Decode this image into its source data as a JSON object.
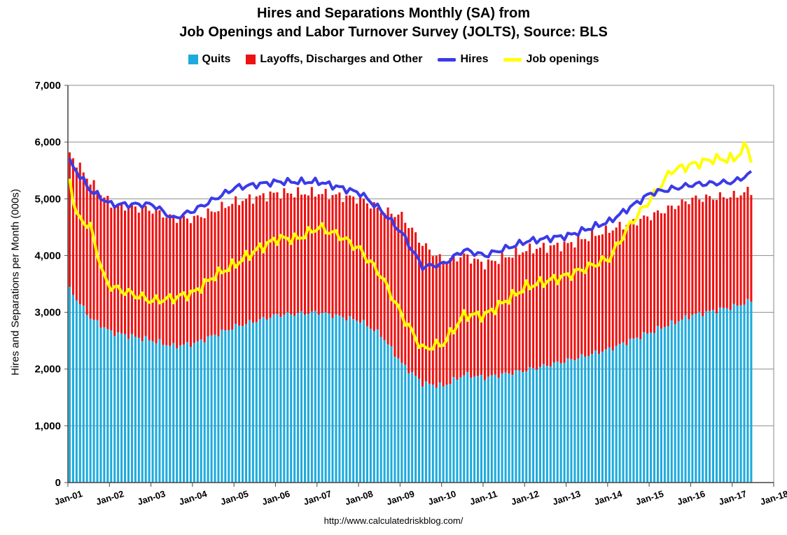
{
  "title_line1": "Hires and Separations Monthly (SA) from",
  "title_line2": "Job Openings and Labor Turnover Survey (JOLTS), Source: BLS",
  "legend": {
    "quits": "Quits",
    "layoffs": "Layoffs, Discharges and Other",
    "hires": "Hires",
    "openings": "Job openings"
  },
  "colors": {
    "quits": "#1EAADC",
    "layoffs": "#EE1111",
    "hires": "#3B3BE8",
    "openings": "#FFFF00"
  },
  "source": "http://www.calculatedriskblog.com/",
  "chart_data": {
    "type": "bar",
    "title": "Hires and Separations Monthly (SA) from Job Openings and Labor Turnover Survey (JOLTS), Source: BLS",
    "ylabel": "Hires and Separations per Month (000s)",
    "xlabel": "",
    "ylim": [
      0,
      7000
    ],
    "yticks": [
      0,
      1000,
      2000,
      3000,
      4000,
      5000,
      6000,
      7000
    ],
    "ytick_labels": [
      "0",
      "1,000",
      "2,000",
      "3,000",
      "4,000",
      "5,000",
      "6,000",
      "7,000"
    ],
    "xtick_labels": [
      "Jan-01",
      "Jan-02",
      "Jan-03",
      "Jan-04",
      "Jan-05",
      "Jan-06",
      "Jan-07",
      "Jan-08",
      "Jan-09",
      "Jan-10",
      "Jan-11",
      "Jan-12",
      "Jan-13",
      "Jan-14",
      "Jan-15",
      "Jan-16",
      "Jan-17",
      "Jan-18"
    ],
    "stacked": true,
    "grid": true,
    "legend_position": "top",
    "frequency": "monthly",
    "start": "Jan-01",
    "end": "Jun-17",
    "anchors": {
      "quits": [
        [
          "Jan-01",
          3400
        ],
        [
          "Jul-01",
          2900
        ],
        [
          "Jan-02",
          2650
        ],
        [
          "Jan-03",
          2500
        ],
        [
          "Jul-03",
          2400
        ],
        [
          "Jan-04",
          2450
        ],
        [
          "Jan-05",
          2750
        ],
        [
          "Jan-06",
          2950
        ],
        [
          "Jan-07",
          3000
        ],
        [
          "Jan-08",
          2850
        ],
        [
          "Jul-08",
          2600
        ],
        [
          "Jan-09",
          2100
        ],
        [
          "Jul-09",
          1750
        ],
        [
          "Jan-10",
          1700
        ],
        [
          "Jul-10",
          1900
        ],
        [
          "Jan-11",
          1850
        ],
        [
          "Jan-12",
          1980
        ],
        [
          "Jan-13",
          2150
        ],
        [
          "Jan-14",
          2350
        ],
        [
          "Jan-15",
          2650
        ],
        [
          "Jan-16",
          2950
        ],
        [
          "Jan-17",
          3100
        ],
        [
          "Jun-17",
          3200
        ]
      ],
      "separations": [
        [
          "Jan-01",
          5800
        ],
        [
          "Jul-01",
          5300
        ],
        [
          "Jan-02",
          4900
        ],
        [
          "Jan-03",
          4800
        ],
        [
          "Jul-03",
          4650
        ],
        [
          "Jan-04",
          4650
        ],
        [
          "Jan-05",
          4950
        ],
        [
          "Jan-06",
          5100
        ],
        [
          "Jan-07",
          5100
        ],
        [
          "Jan-08",
          5000
        ],
        [
          "Jul-08",
          4800
        ],
        [
          "Jan-09",
          4700
        ],
        [
          "Jul-09",
          4200
        ],
        [
          "Jan-10",
          3900
        ],
        [
          "Jul-10",
          4000
        ],
        [
          "Jan-11",
          3850
        ],
        [
          "Jan-12",
          4100
        ],
        [
          "Jan-13",
          4200
        ],
        [
          "Jan-14",
          4450
        ],
        [
          "Jan-15",
          4700
        ],
        [
          "Jan-16",
          5000
        ],
        [
          "Jan-17",
          5050
        ],
        [
          "Jun-17",
          5150
        ]
      ],
      "hires": [
        [
          "Jan-01",
          5650
        ],
        [
          "Jul-01",
          5150
        ],
        [
          "Jan-02",
          4900
        ],
        [
          "Jan-03",
          4900
        ],
        [
          "Jul-03",
          4650
        ],
        [
          "Jan-04",
          4800
        ],
        [
          "Jan-05",
          5200
        ],
        [
          "Jan-06",
          5300
        ],
        [
          "Jan-07",
          5300
        ],
        [
          "Jan-08",
          5100
        ],
        [
          "Jul-08",
          4800
        ],
        [
          "Jan-09",
          4400
        ],
        [
          "Jul-09",
          3800
        ],
        [
          "Jan-10",
          3850
        ],
        [
          "Jul-10",
          4100
        ],
        [
          "Jan-11",
          4000
        ],
        [
          "Jan-12",
          4250
        ],
        [
          "Jan-13",
          4350
        ],
        [
          "Jan-14",
          4600
        ],
        [
          "Jan-15",
          5100
        ],
        [
          "Jan-16",
          5250
        ],
        [
          "Jan-17",
          5300
        ],
        [
          "Jun-17",
          5450
        ]
      ],
      "job_openings": [
        [
          "Jan-01",
          5350
        ],
        [
          "Mar-01",
          4700
        ],
        [
          "Jul-01",
          4500
        ],
        [
          "Nov-01",
          3600
        ],
        [
          "Jan-02",
          3450
        ],
        [
          "Jan-03",
          3200
        ],
        [
          "Jul-03",
          3250
        ],
        [
          "Jan-04",
          3350
        ],
        [
          "Jul-04",
          3650
        ],
        [
          "Jan-05",
          3850
        ],
        [
          "Jul-05",
          4100
        ],
        [
          "Jan-06",
          4300
        ],
        [
          "Jul-06",
          4300
        ],
        [
          "Jan-07",
          4500
        ],
        [
          "Jul-07",
          4350
        ],
        [
          "Jan-08",
          4100
        ],
        [
          "Jul-08",
          3650
        ],
        [
          "Jan-09",
          2950
        ],
        [
          "Jul-09",
          2350
        ],
        [
          "Jan-10",
          2450
        ],
        [
          "Jul-10",
          2950
        ],
        [
          "Jan-11",
          2950
        ],
        [
          "Jan-12",
          3450
        ],
        [
          "Jan-13",
          3650
        ],
        [
          "Jan-14",
          3950
        ],
        [
          "Jul-14",
          4550
        ],
        [
          "Jan-15",
          5000
        ],
        [
          "Jul-15",
          5500
        ],
        [
          "Jan-16",
          5600
        ],
        [
          "Jul-16",
          5700
        ],
        [
          "Jan-17",
          5700
        ],
        [
          "May-17",
          5950
        ],
        [
          "Jun-17",
          5650
        ]
      ]
    },
    "notes_units": "thousands"
  }
}
